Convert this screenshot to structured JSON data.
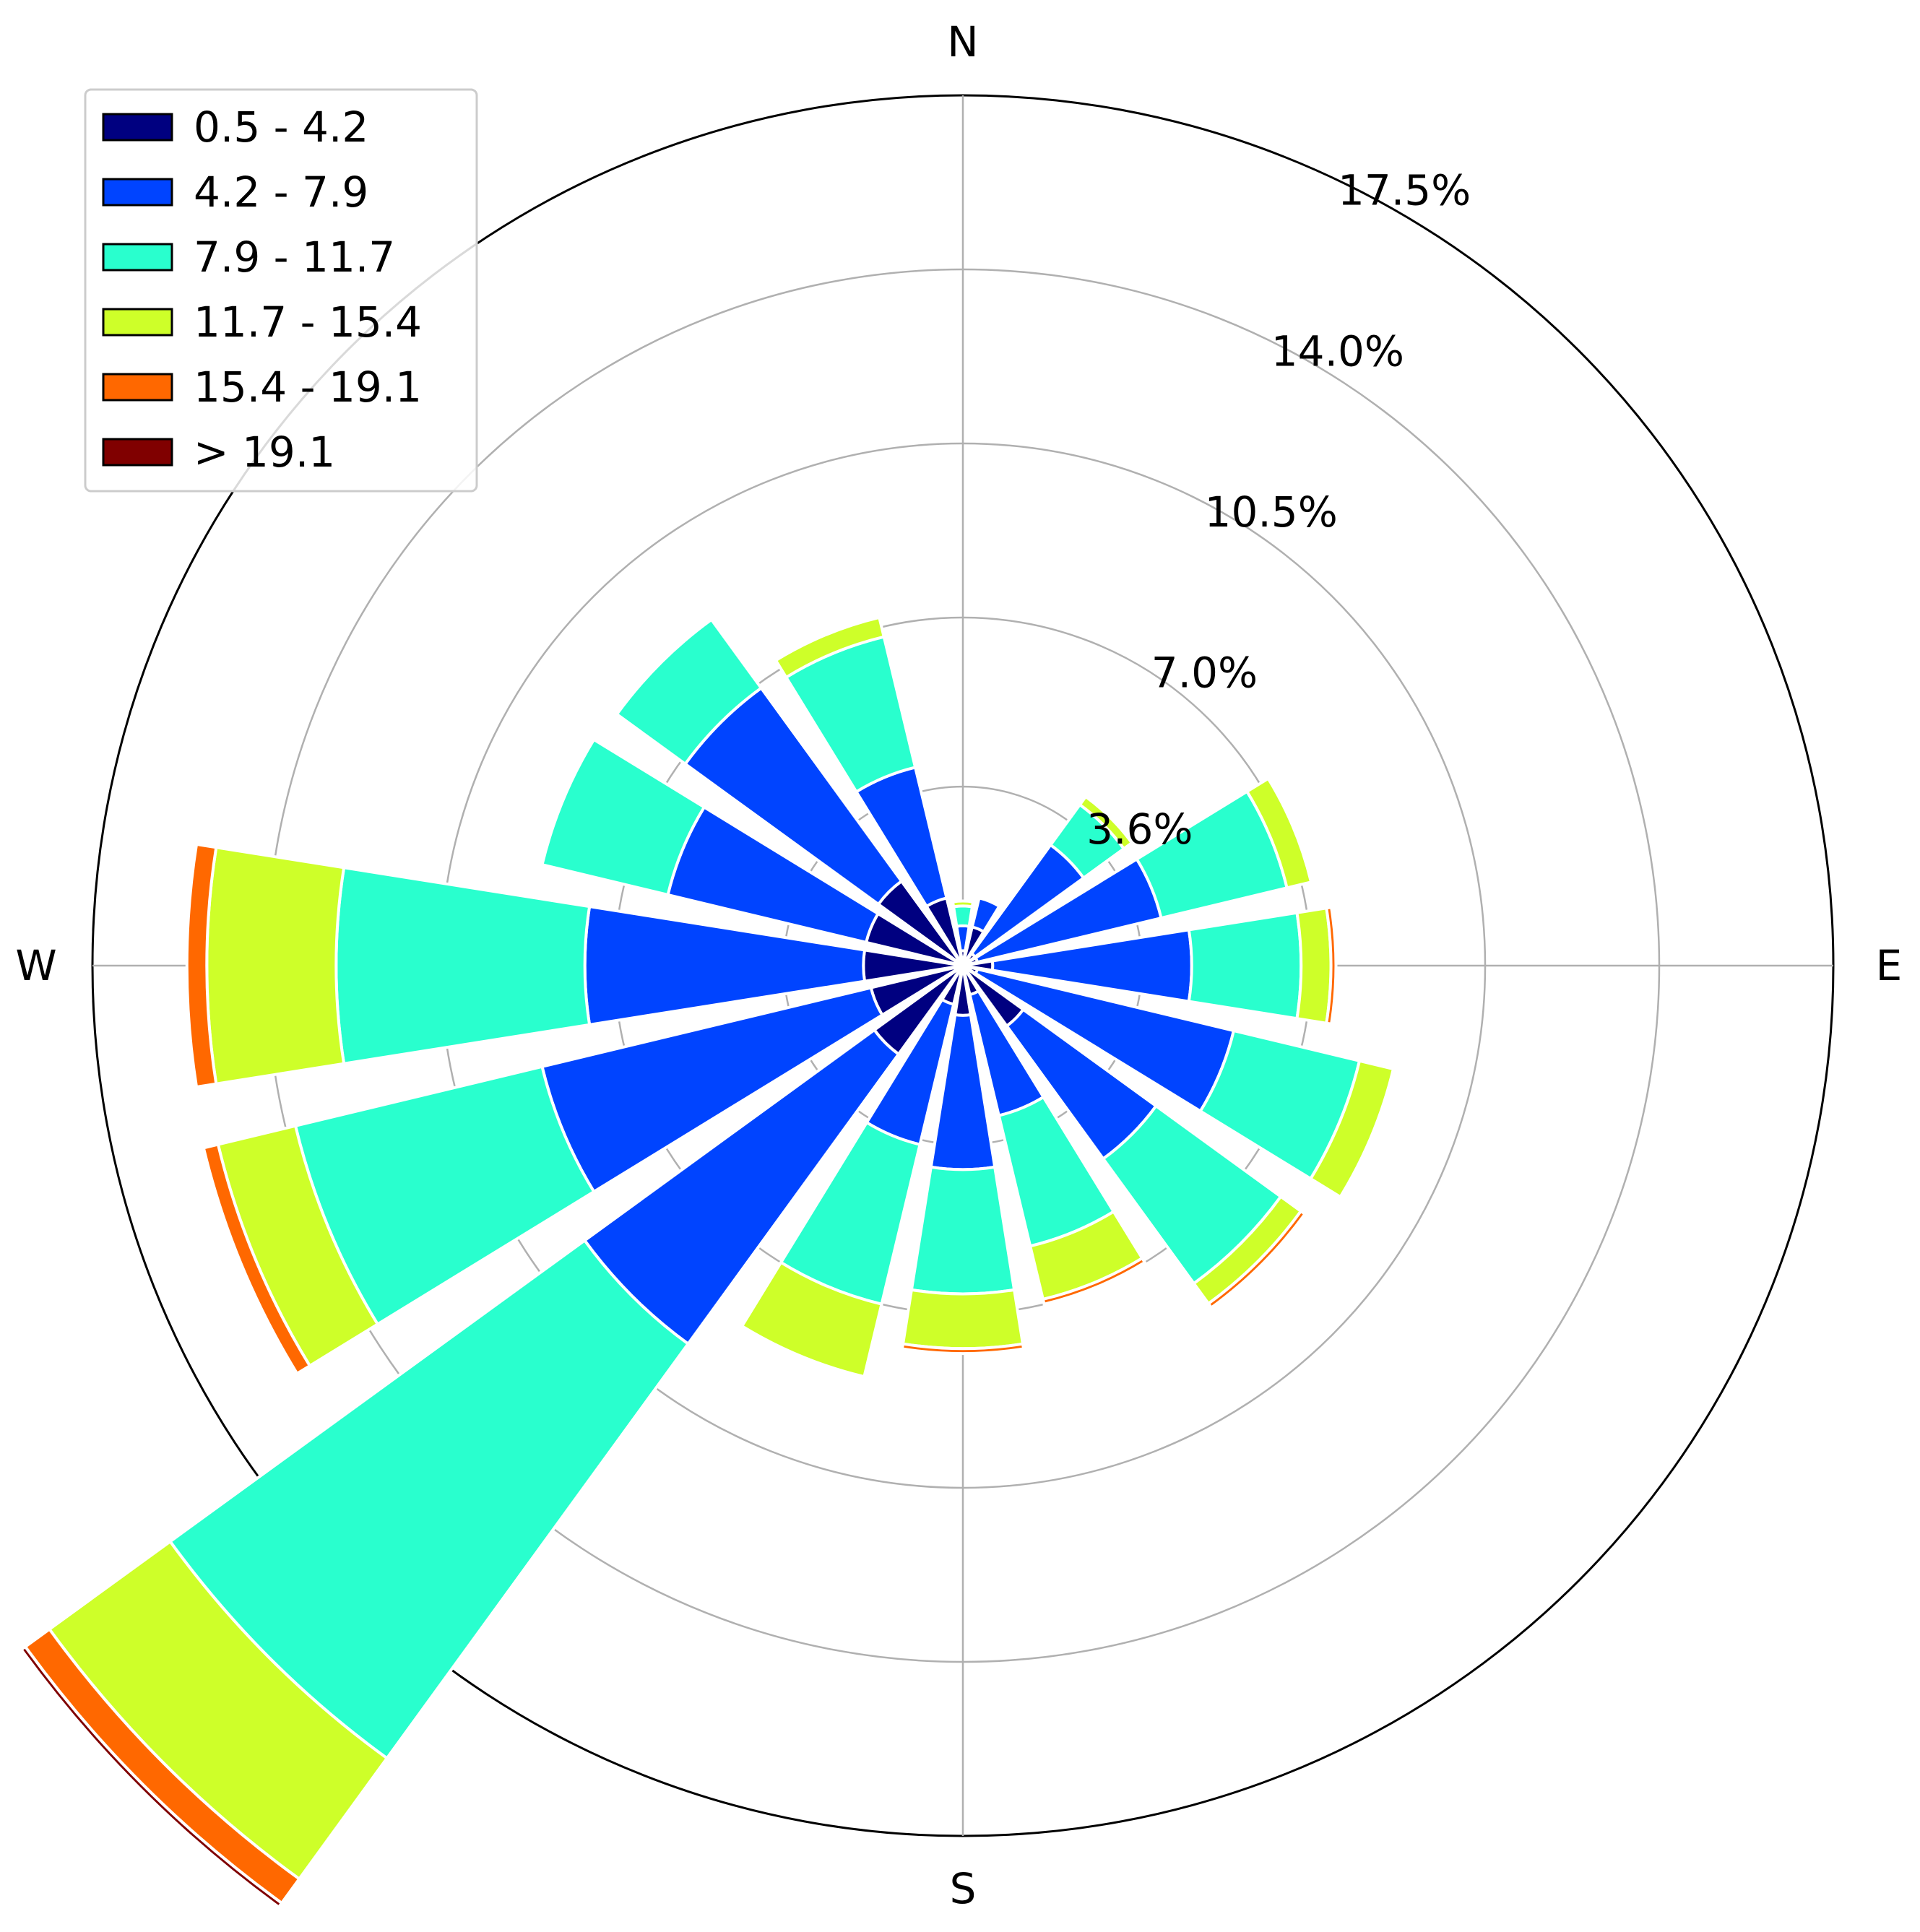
{
  "chart_data": {
    "type": "windrose",
    "directions": [
      "N",
      "NNE",
      "NE",
      "ENE",
      "E",
      "ESE",
      "SE",
      "SSE",
      "S",
      "SSW",
      "SW",
      "WSW",
      "W",
      "WNW",
      "NW",
      "NNW"
    ],
    "direction_degrees": [
      0,
      22.5,
      45,
      67.5,
      90,
      112.5,
      135,
      157.5,
      180,
      202.5,
      225,
      247.5,
      270,
      292.5,
      315,
      337.5
    ],
    "cardinal_labels": [
      "N",
      "E",
      "S",
      "W"
    ],
    "radial_ticks": [
      3.6,
      7.0,
      10.5,
      14.0,
      17.5
    ],
    "radial_tick_labels": [
      "3.6%",
      "7.0%",
      "10.5%",
      "14.0%",
      "17.5%"
    ],
    "rmax": 17.5,
    "legend_position": "top-left",
    "grid": true,
    "series": [
      {
        "name": "0.5 - 4.2",
        "color": "#000080",
        "values": [
          0.3,
          0.8,
          0.3,
          0.3,
          0.6,
          0.3,
          1.5,
          0.6,
          1.0,
          0.8,
          2.2,
          1.9,
          2.0,
          2.0,
          2.1,
          1.4
        ]
      },
      {
        "name": "4.2 - 7.9",
        "color": "#0044ff",
        "values": [
          0.5,
          0.6,
          2.7,
          3.8,
          4.0,
          5.3,
          3.3,
          2.5,
          3.1,
          2.9,
          7.2,
          6.8,
          5.6,
          4.1,
          4.8,
          2.7
        ]
      },
      {
        "name": "7.9 - 11.7",
        "color": "#29ffce",
        "values": [
          0.4,
          0.0,
          1.0,
          2.6,
          2.2,
          2.6,
          3.1,
          2.7,
          2.5,
          3.3,
          10.3,
          5.1,
          5.0,
          2.6,
          1.7,
          2.7
        ]
      },
      {
        "name": "11.7 - 15.4",
        "color": "#ceff29",
        "values": [
          0.1,
          0.0,
          0.2,
          0.5,
          0.6,
          0.7,
          0.5,
          1.1,
          1.1,
          1.5,
          3.0,
          1.6,
          2.6,
          0.0,
          0.0,
          0.4
        ]
      },
      {
        "name": "15.4 - 19.1",
        "color": "#ff6800",
        "values": [
          0.0,
          0.0,
          0.0,
          0.0,
          0.1,
          0.0,
          0.1,
          0.1,
          0.1,
          0.0,
          0.6,
          0.3,
          0.4,
          0.0,
          0.0,
          0.0
        ]
      },
      {
        "name": "> 19.1",
        "color": "#800000",
        "values": [
          0.0,
          0.0,
          0.0,
          0.0,
          0.0,
          0.0,
          0.0,
          0.0,
          0.0,
          0.0,
          0.1,
          0.0,
          0.0,
          0.0,
          0.0,
          0.0
        ]
      }
    ]
  }
}
